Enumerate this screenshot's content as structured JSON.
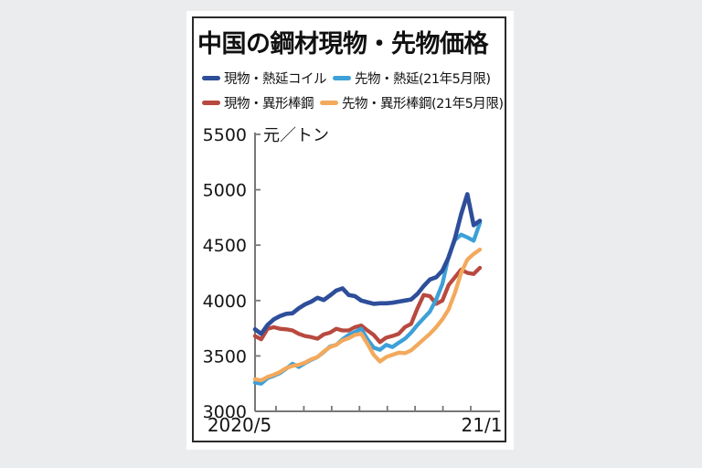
{
  "page": {
    "background_color": "#ebecee"
  },
  "chart": {
    "title": "中国の鋼材現物・先物価格",
    "unit_label": "元／トン",
    "x_start_label": "2020/5",
    "x_end_label": "21/1"
  },
  "legend": {
    "items": [
      {
        "id": "spot-hrc",
        "label": "現物・熱延コイル",
        "color": "#2e4e9a"
      },
      {
        "id": "futures-hrc",
        "label": "先物・熱延(21年5月限)",
        "color": "#3da0d8"
      },
      {
        "id": "spot-rebar",
        "label": "現物・異形棒鋼",
        "color": "#b8493f"
      },
      {
        "id": "futures-rebar",
        "label": "先物・異形棒鋼(21年5月限)",
        "color": "#f3a95c"
      }
    ]
  },
  "chart_data": {
    "type": "line",
    "title": "中国の鋼材現物・先物価格",
    "ylabel": "元／トン",
    "ylim": [
      3000,
      5500
    ],
    "yticks": [
      3000,
      3500,
      4000,
      4500,
      5000,
      5500
    ],
    "x_axis": {
      "start_label": "2020/5",
      "end_label": "21/1",
      "tick_count": 8,
      "note": "monthly ticks Jun 2020 - Jan 2021; weekly data points May 2020 - late Jan 2021"
    },
    "grid": false,
    "legend_position": "top",
    "series": [
      {
        "id": "spot-hrc",
        "name": "現物・熱延コイル",
        "color": "#2e4e9a",
        "values": [
          3740,
          3700,
          3780,
          3830,
          3860,
          3880,
          3885,
          3930,
          3965,
          3990,
          4025,
          4005,
          4045,
          4090,
          4110,
          4050,
          4040,
          4000,
          3985,
          3970,
          3975,
          3975,
          3980,
          3990,
          4000,
          4010,
          4060,
          4130,
          4190,
          4210,
          4270,
          4390,
          4560,
          4780,
          4960,
          4680,
          4720
        ]
      },
      {
        "id": "futures-hrc",
        "name": "先物・熱延(21年5月限)",
        "color": "#3da0d8",
        "values": [
          3260,
          3250,
          3300,
          3320,
          3345,
          3385,
          3430,
          3400,
          3435,
          3465,
          3490,
          3535,
          3585,
          3600,
          3650,
          3690,
          3715,
          3745,
          3650,
          3575,
          3555,
          3600,
          3580,
          3620,
          3655,
          3710,
          3780,
          3840,
          3900,
          4010,
          4150,
          4400,
          4545,
          4595,
          4570,
          4540,
          4700
        ]
      },
      {
        "id": "spot-rebar",
        "name": "現物・異形棒鋼",
        "color": "#b8493f",
        "values": [
          3680,
          3650,
          3745,
          3760,
          3745,
          3740,
          3730,
          3700,
          3680,
          3670,
          3655,
          3695,
          3710,
          3745,
          3730,
          3730,
          3760,
          3775,
          3730,
          3690,
          3625,
          3665,
          3680,
          3700,
          3760,
          3790,
          3930,
          4050,
          4040,
          3970,
          4000,
          4140,
          4210,
          4280,
          4250,
          4240,
          4295
        ]
      },
      {
        "id": "futures-rebar",
        "name": "先物・異形棒鋼(21年5月限)",
        "color": "#f3a95c",
        "values": [
          3290,
          3280,
          3310,
          3330,
          3355,
          3390,
          3410,
          3420,
          3440,
          3470,
          3490,
          3540,
          3580,
          3600,
          3640,
          3660,
          3690,
          3700,
          3610,
          3510,
          3450,
          3490,
          3510,
          3530,
          3525,
          3550,
          3600,
          3650,
          3700,
          3760,
          3830,
          3920,
          4070,
          4250,
          4370,
          4420,
          4460
        ]
      }
    ]
  }
}
